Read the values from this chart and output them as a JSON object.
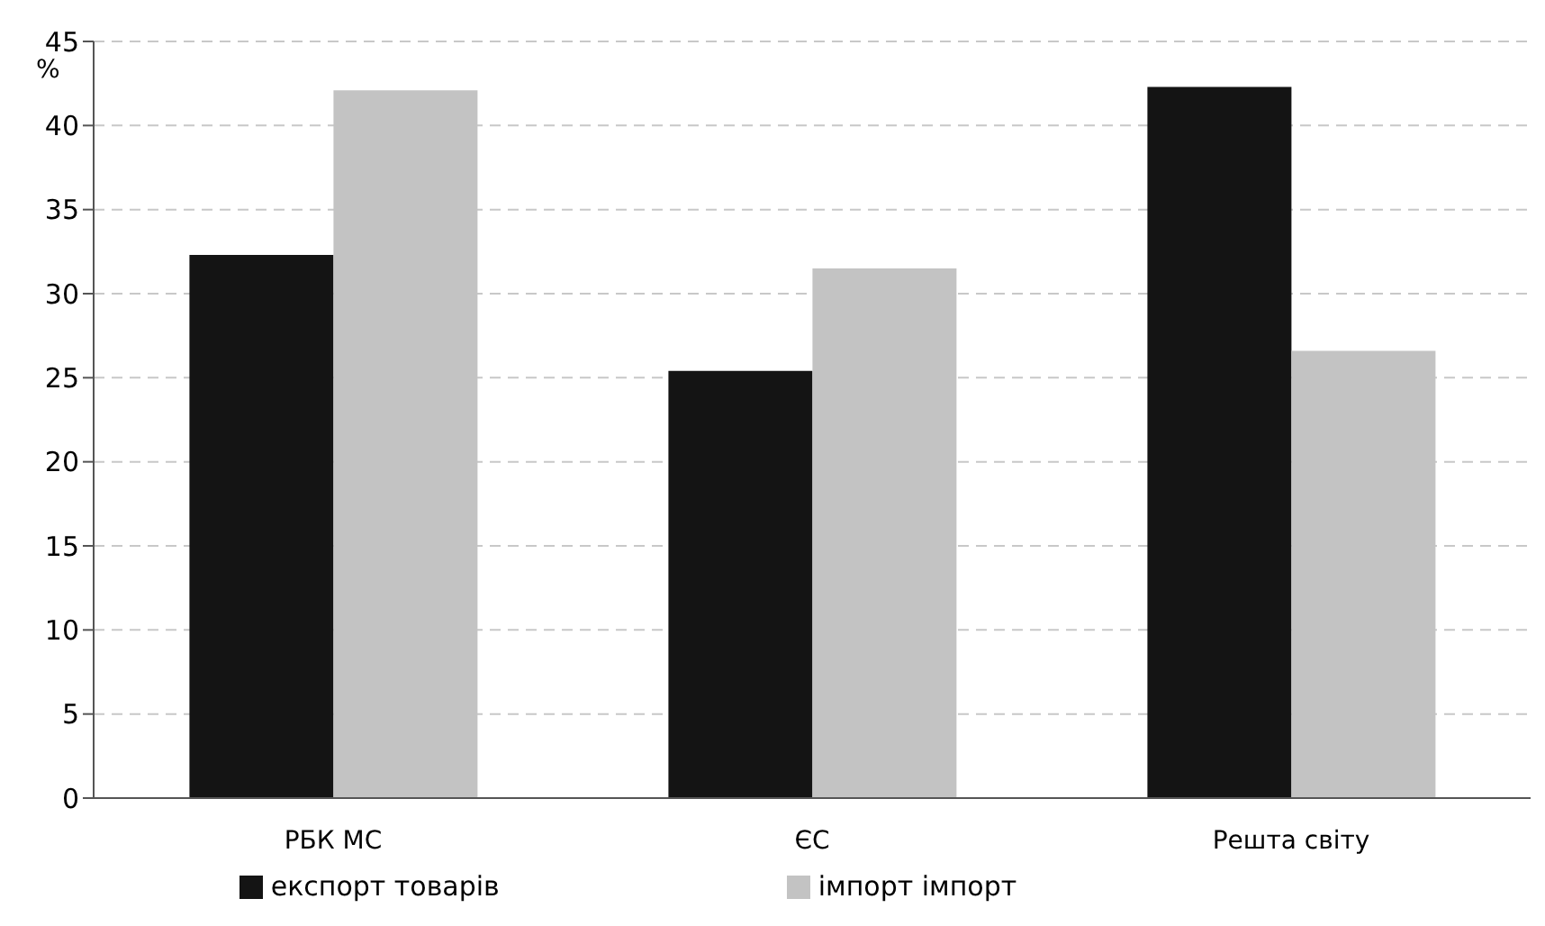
{
  "chart_data": {
    "type": "bar",
    "ylabel": "%",
    "categories": [
      "РБК МС",
      "ЄС",
      "Решта світу"
    ],
    "series": [
      {
        "name": "експорт товарів",
        "color": "#141414",
        "values": [
          32.3,
          25.4,
          42.3
        ]
      },
      {
        "name": "імпорт імпорт",
        "color": "#c3c3c3",
        "values": [
          42.1,
          31.5,
          26.6
        ]
      }
    ],
    "ylim": [
      0,
      45
    ],
    "yticks": [
      0,
      5,
      10,
      15,
      20,
      25,
      30,
      35,
      40,
      45
    ],
    "grid": "y",
    "legend": "bottom"
  }
}
